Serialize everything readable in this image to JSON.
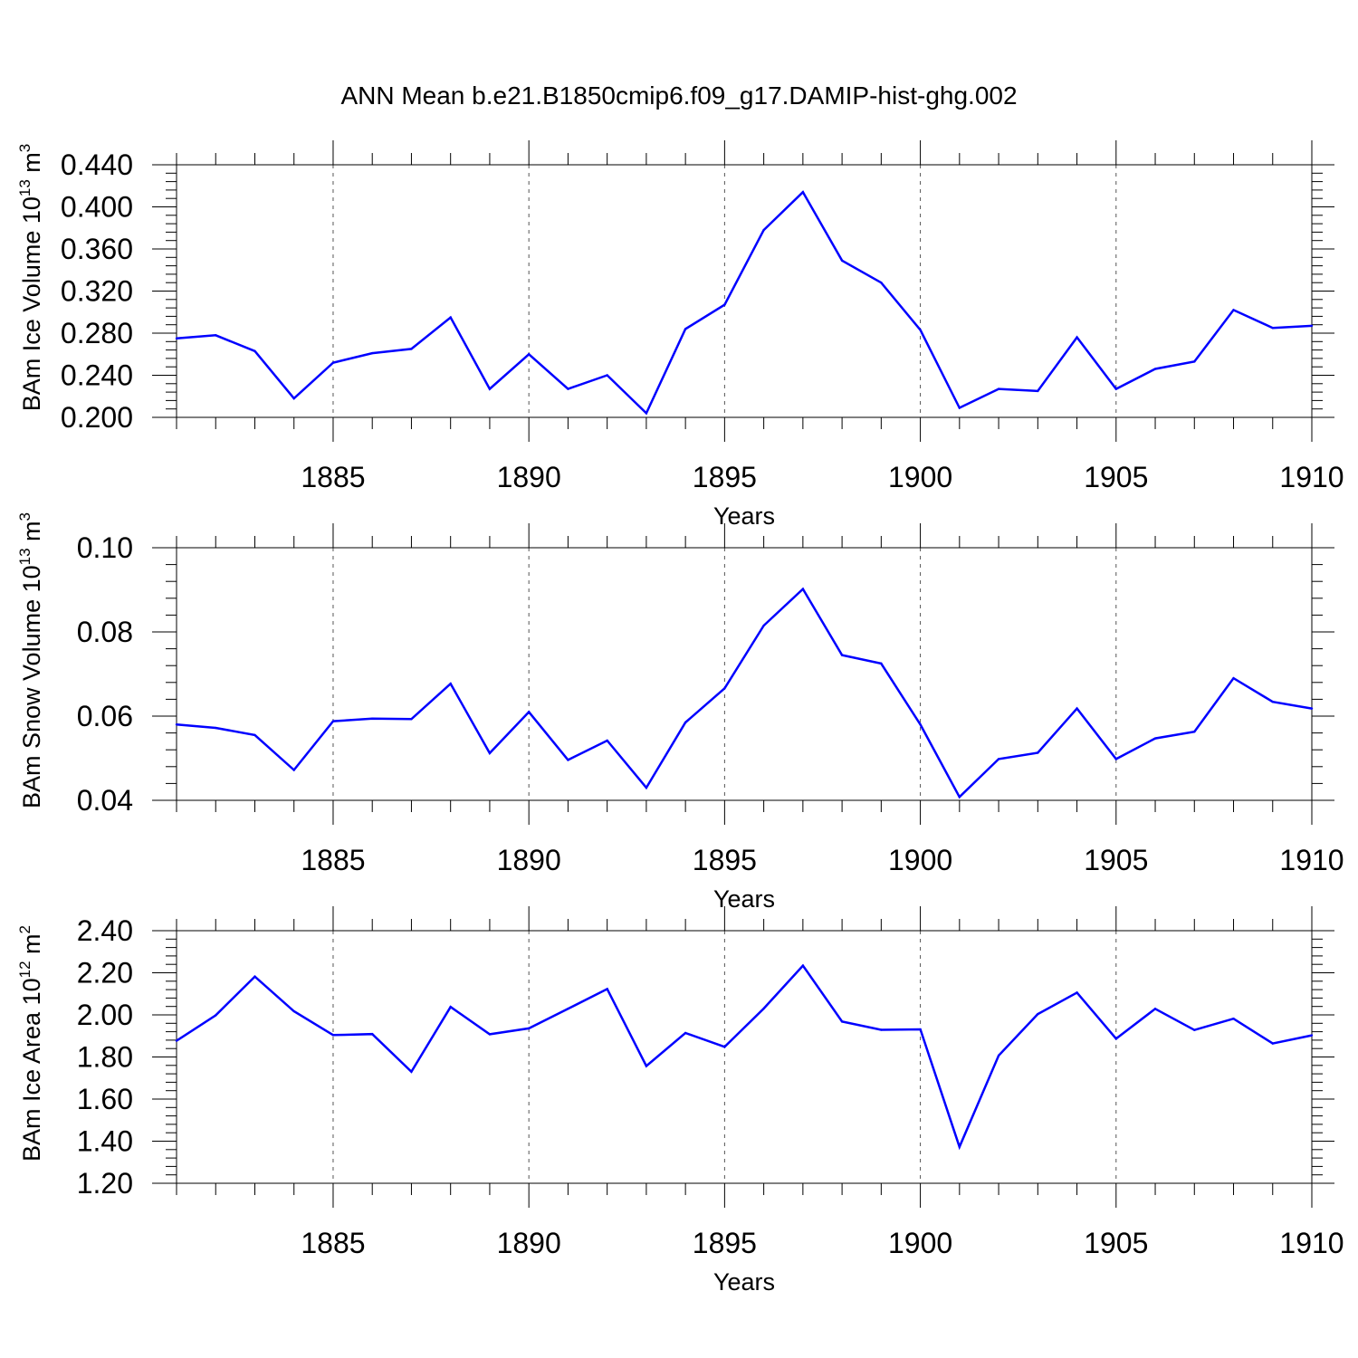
{
  "title": "ANN Mean b.e21.B1850cmip6.f09_g17.DAMIP-hist-ghg.002",
  "colors": {
    "line": "#0000ff",
    "axis": "#000000",
    "grid": "#555555"
  },
  "chart_data": [
    {
      "type": "line",
      "ylabel": "BAm Ice Volume 10",
      "ylabel_exp": "13",
      "ylabel_unit": " m",
      "ylabel_unit_exp": "3",
      "xlabel": "Years",
      "xlim": [
        1881,
        1910
      ],
      "ylim": [
        0.2,
        0.44
      ],
      "yticks": [
        0.2,
        0.24,
        0.28,
        0.32,
        0.36,
        0.4,
        0.44
      ],
      "ytick_labels": [
        "0.200",
        "0.240",
        "0.280",
        "0.320",
        "0.360",
        "0.400",
        "0.440"
      ],
      "xticks": [
        1885,
        1890,
        1895,
        1900,
        1905,
        1910
      ],
      "xtick_labels": [
        "1885",
        "1890",
        "1895",
        "1900",
        "1905",
        "1910"
      ],
      "x": [
        1881,
        1882,
        1883,
        1884,
        1885,
        1886,
        1887,
        1888,
        1889,
        1890,
        1891,
        1892,
        1893,
        1894,
        1895,
        1896,
        1897,
        1898,
        1899,
        1900,
        1901,
        1902,
        1903,
        1904,
        1905,
        1906,
        1907,
        1908,
        1909,
        1910
      ],
      "values": [
        0.275,
        0.278,
        0.263,
        0.218,
        0.252,
        0.261,
        0.265,
        0.295,
        0.227,
        0.26,
        0.227,
        0.24,
        0.204,
        0.284,
        0.307,
        0.378,
        0.414,
        0.349,
        0.328,
        0.283,
        0.209,
        0.227,
        0.225,
        0.276,
        0.227,
        0.246,
        0.253,
        0.302,
        0.285,
        0.287
      ]
    },
    {
      "type": "line",
      "ylabel": "BAm Snow Volume 10",
      "ylabel_exp": "13",
      "ylabel_unit": " m",
      "ylabel_unit_exp": "3",
      "xlabel": "Years",
      "xlim": [
        1881,
        1910
      ],
      "ylim": [
        0.04,
        0.1
      ],
      "yticks": [
        0.04,
        0.06,
        0.08,
        0.1
      ],
      "ytick_labels": [
        "0.04",
        "0.06",
        "0.08",
        "0.10"
      ],
      "xticks": [
        1885,
        1890,
        1895,
        1900,
        1905,
        1910
      ],
      "xtick_labels": [
        "1885",
        "1890",
        "1895",
        "1900",
        "1905",
        "1910"
      ],
      "x": [
        1881,
        1882,
        1883,
        1884,
        1885,
        1886,
        1887,
        1888,
        1889,
        1890,
        1891,
        1892,
        1893,
        1894,
        1895,
        1896,
        1897,
        1898,
        1899,
        1900,
        1901,
        1902,
        1903,
        1904,
        1905,
        1906,
        1907,
        1908,
        1909,
        1910
      ],
      "values": [
        0.058,
        0.0572,
        0.0555,
        0.0472,
        0.0588,
        0.0594,
        0.0593,
        0.0677,
        0.0512,
        0.061,
        0.0496,
        0.0542,
        0.043,
        0.0585,
        0.0666,
        0.0815,
        0.0902,
        0.0745,
        0.0725,
        0.058,
        0.0408,
        0.0498,
        0.0513,
        0.0618,
        0.0498,
        0.0547,
        0.0563,
        0.069,
        0.0634,
        0.0618
      ]
    },
    {
      "type": "line",
      "ylabel": "BAm Ice Area 10",
      "ylabel_exp": "12",
      "ylabel_unit": " m",
      "ylabel_unit_exp": "2",
      "xlabel": "Years",
      "xlim": [
        1881,
        1910
      ],
      "ylim": [
        1.2,
        2.4
      ],
      "yticks": [
        1.2,
        1.4,
        1.6,
        1.8,
        2.0,
        2.2,
        2.4
      ],
      "ytick_labels": [
        "1.20",
        "1.40",
        "1.60",
        "1.80",
        "2.00",
        "2.20",
        "2.40"
      ],
      "xticks": [
        1885,
        1890,
        1895,
        1900,
        1905,
        1910
      ],
      "xtick_labels": [
        "1885",
        "1890",
        "1895",
        "1900",
        "1905",
        "1910"
      ],
      "x": [
        1881,
        1882,
        1883,
        1884,
        1885,
        1886,
        1887,
        1888,
        1889,
        1890,
        1891,
        1892,
        1893,
        1894,
        1895,
        1896,
        1897,
        1898,
        1899,
        1900,
        1901,
        1902,
        1903,
        1904,
        1905,
        1906,
        1907,
        1908,
        1909,
        1910
      ],
      "values": [
        1.877,
        1.998,
        2.182,
        2.017,
        1.904,
        1.909,
        1.73,
        2.038,
        1.908,
        1.936,
        2.029,
        2.123,
        1.757,
        1.914,
        1.848,
        2.03,
        2.234,
        1.968,
        1.929,
        1.931,
        1.373,
        1.807,
        2.004,
        2.106,
        1.887,
        2.029,
        1.928,
        1.982,
        1.864,
        1.903
      ]
    }
  ]
}
